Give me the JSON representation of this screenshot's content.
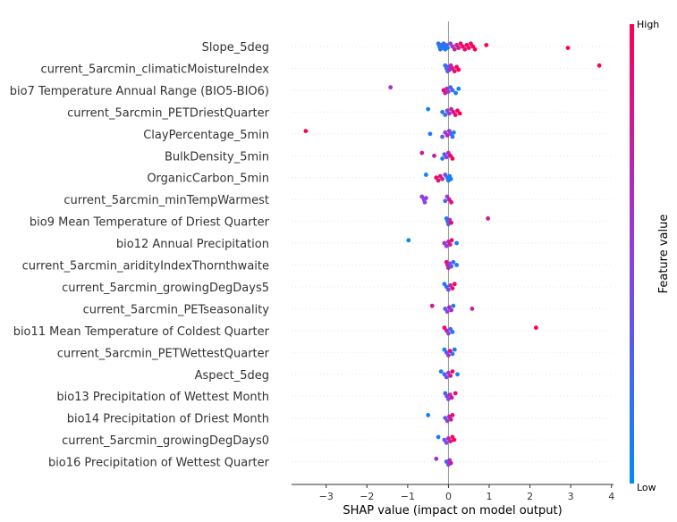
{
  "chart_data": {
    "type": "scatter",
    "xlabel": "SHAP value (impact on model output)",
    "xlim": [
      -3.85,
      4.05
    ],
    "xticks": [
      -3,
      -2,
      -1,
      0,
      1,
      2,
      3,
      4
    ],
    "xtick_labels": [
      "−3",
      "−2",
      "−1",
      "0",
      "1",
      "2",
      "3",
      "4"
    ],
    "colorbar": {
      "title": "Feature value",
      "high_label": "High",
      "low_label": "Low",
      "low_color": "#008bfb",
      "high_color": "#ff0052"
    },
    "colors": {
      "low": "#008bfb",
      "high": "#ff0052",
      "zero_line": "#999999",
      "row_line": "#e6e6e6"
    },
    "features": [
      {
        "name": "Slope_5deg",
        "points": [
          [
            -0.25,
            0.1
          ],
          [
            -0.22,
            0.1
          ],
          [
            -0.2,
            0.15
          ],
          [
            -0.18,
            0.2
          ],
          [
            -0.15,
            0.1
          ],
          [
            -0.12,
            0.2
          ],
          [
            -0.1,
            0.15
          ],
          [
            -0.08,
            0.1
          ],
          [
            -0.05,
            0.2
          ],
          [
            -0.02,
            0.1
          ],
          [
            0.05,
            0.5
          ],
          [
            0.1,
            0.6
          ],
          [
            0.15,
            0.7
          ],
          [
            0.2,
            0.8
          ],
          [
            0.25,
            0.85
          ],
          [
            0.3,
            0.9
          ],
          [
            0.35,
            0.9
          ],
          [
            0.4,
            0.9
          ],
          [
            0.45,
            0.95
          ],
          [
            0.5,
            0.95
          ],
          [
            0.55,
            0.95
          ],
          [
            0.6,
            1.0
          ],
          [
            0.65,
            1.0
          ],
          [
            0.93,
            1.0
          ],
          [
            2.93,
            1.0
          ]
        ]
      },
      {
        "name": "current_5arcmin_climaticMoistureIndex",
        "points": [
          [
            -0.08,
            0.1
          ],
          [
            -0.05,
            0.2
          ],
          [
            -0.02,
            0.3
          ],
          [
            0.0,
            0.4
          ],
          [
            0.03,
            0.6
          ],
          [
            0.06,
            0.7
          ],
          [
            0.1,
            0.8
          ],
          [
            0.15,
            0.9
          ],
          [
            0.2,
            0.95
          ],
          [
            0.25,
            1.0
          ],
          [
            3.7,
            1.0
          ]
        ]
      },
      {
        "name": "bio7 Temperature Annual Range (BIO5-BIO6)",
        "points": [
          [
            -1.42,
            0.6
          ],
          [
            -0.12,
            0.9
          ],
          [
            -0.08,
            0.8
          ],
          [
            -0.04,
            0.7
          ],
          [
            0.0,
            0.5
          ],
          [
            0.05,
            0.3
          ],
          [
            0.1,
            0.2
          ],
          [
            0.18,
            0.1
          ],
          [
            0.25,
            0.05
          ]
        ]
      },
      {
        "name": "current_5arcmin_PETDriestQuarter",
        "points": [
          [
            -0.5,
            0.05
          ],
          [
            -0.15,
            0.1
          ],
          [
            -0.08,
            0.2
          ],
          [
            -0.03,
            0.4
          ],
          [
            0.02,
            0.6
          ],
          [
            0.07,
            0.75
          ],
          [
            0.12,
            0.85
          ],
          [
            0.17,
            0.9
          ],
          [
            0.22,
            0.95
          ],
          [
            0.28,
            1.0
          ]
        ]
      },
      {
        "name": "ClayPercentage_5min",
        "points": [
          [
            -3.5,
            1.0
          ],
          [
            -0.45,
            0.1
          ],
          [
            -0.15,
            0.3
          ],
          [
            -0.08,
            0.5
          ],
          [
            -0.03,
            0.7
          ],
          [
            0.02,
            0.6
          ],
          [
            0.06,
            0.4
          ],
          [
            0.1,
            0.2
          ],
          [
            0.13,
            0.05
          ]
        ]
      },
      {
        "name": "BulkDensity_5min",
        "points": [
          [
            -0.65,
            0.8
          ],
          [
            -0.35,
            0.75
          ],
          [
            -0.15,
            0.1
          ],
          [
            -0.1,
            0.3
          ],
          [
            -0.05,
            0.5
          ],
          [
            0.0,
            0.7
          ],
          [
            0.05,
            0.9
          ],
          [
            0.1,
            0.95
          ]
        ]
      },
      {
        "name": "OrganicCarbon_5min",
        "points": [
          [
            -0.55,
            0.05
          ],
          [
            -0.3,
            0.95
          ],
          [
            -0.25,
            0.9
          ],
          [
            -0.2,
            0.85
          ],
          [
            -0.15,
            0.7
          ],
          [
            -0.08,
            0.4
          ],
          [
            -0.03,
            0.2
          ],
          [
            0.0,
            0.1
          ],
          [
            0.03,
            0.05
          ],
          [
            0.06,
            0.05
          ]
        ]
      },
      {
        "name": "current_5arcmin_minTempWarmest",
        "points": [
          [
            -0.65,
            0.5
          ],
          [
            -0.6,
            0.5
          ],
          [
            -0.58,
            0.5
          ],
          [
            -0.55,
            0.5
          ],
          [
            -0.08,
            0.2
          ],
          [
            -0.03,
            0.5
          ],
          [
            0.02,
            0.8
          ],
          [
            0.07,
            0.9
          ]
        ]
      },
      {
        "name": "bio9 Mean Temperature of Driest Quarter",
        "points": [
          [
            -0.05,
            0.1
          ],
          [
            -0.02,
            0.2
          ],
          [
            0.0,
            0.3
          ],
          [
            0.03,
            0.6
          ],
          [
            0.07,
            0.9
          ],
          [
            0.97,
            0.8
          ]
        ]
      },
      {
        "name": "bio12 Annual Precipitation",
        "points": [
          [
            -0.98,
            0.05
          ],
          [
            -0.1,
            0.6
          ],
          [
            -0.05,
            0.5
          ],
          [
            0.0,
            0.7
          ],
          [
            0.04,
            0.8
          ],
          [
            0.08,
            0.9
          ],
          [
            0.2,
            0.1
          ]
        ]
      },
      {
        "name": "current_5arcmin_aridityIndexThornthwaite",
        "points": [
          [
            -0.05,
            0.9
          ],
          [
            -0.02,
            0.8
          ],
          [
            0.0,
            0.7
          ],
          [
            0.03,
            0.5
          ],
          [
            0.07,
            0.3
          ],
          [
            0.12,
            0.2
          ],
          [
            0.2,
            0.1
          ]
        ]
      },
      {
        "name": "current_5arcmin_growingDegDays5",
        "points": [
          [
            -0.1,
            0.1
          ],
          [
            -0.05,
            0.2
          ],
          [
            0.0,
            0.4
          ],
          [
            0.05,
            0.7
          ],
          [
            0.1,
            0.9
          ],
          [
            0.15,
            1.0
          ]
        ]
      },
      {
        "name": "current_5arcmin_PETseasonality",
        "points": [
          [
            -0.4,
            0.8
          ],
          [
            -0.08,
            0.3
          ],
          [
            -0.03,
            0.5
          ],
          [
            0.02,
            0.7
          ],
          [
            0.07,
            0.6
          ],
          [
            0.12,
            0.1
          ],
          [
            0.58,
            0.7
          ]
        ]
      },
      {
        "name": "bio11 Mean Temperature of Coldest Quarter",
        "points": [
          [
            -0.1,
            0.9
          ],
          [
            -0.05,
            0.7
          ],
          [
            0.0,
            0.5
          ],
          [
            0.05,
            0.3
          ],
          [
            0.1,
            0.1
          ],
          [
            2.15,
            1.0
          ]
        ]
      },
      {
        "name": "current_5arcmin_PETWettestQuarter",
        "points": [
          [
            -0.1,
            0.1
          ],
          [
            -0.05,
            0.3
          ],
          [
            0.0,
            0.6
          ],
          [
            0.04,
            0.9
          ],
          [
            0.1,
            0.2
          ],
          [
            0.15,
            0.1
          ]
        ]
      },
      {
        "name": "Aspect_5deg",
        "points": [
          [
            -0.18,
            0.1
          ],
          [
            -0.1,
            0.2
          ],
          [
            -0.05,
            0.4
          ],
          [
            0.0,
            0.6
          ],
          [
            0.05,
            0.8
          ],
          [
            0.1,
            0.9
          ],
          [
            0.22,
            0.1
          ]
        ]
      },
      {
        "name": "bio13 Precipitation of Wettest Month",
        "points": [
          [
            -0.08,
            0.2
          ],
          [
            -0.04,
            0.4
          ],
          [
            0.0,
            0.5
          ],
          [
            0.04,
            0.7
          ],
          [
            0.08,
            0.8
          ],
          [
            0.17,
            0.9
          ]
        ]
      },
      {
        "name": "bio14 Precipitation of Driest Month",
        "points": [
          [
            -0.5,
            0.05
          ],
          [
            -0.08,
            0.3
          ],
          [
            -0.03,
            0.5
          ],
          [
            0.02,
            0.7
          ],
          [
            0.06,
            0.8
          ],
          [
            0.1,
            0.9
          ]
        ]
      },
      {
        "name": "current_5arcmin_growingDegDays0",
        "points": [
          [
            -0.25,
            0.1
          ],
          [
            -0.1,
            0.3
          ],
          [
            -0.05,
            0.5
          ],
          [
            0.0,
            0.7
          ],
          [
            0.05,
            0.8
          ],
          [
            0.1,
            0.9
          ],
          [
            0.14,
            1.0
          ]
        ]
      },
      {
        "name": "bio16 Precipitation of Wettest Quarter",
        "points": [
          [
            -0.3,
            0.6
          ],
          [
            -0.05,
            0.3
          ],
          [
            0.0,
            0.4
          ],
          [
            0.03,
            0.6
          ],
          [
            0.06,
            0.8
          ]
        ]
      }
    ]
  }
}
